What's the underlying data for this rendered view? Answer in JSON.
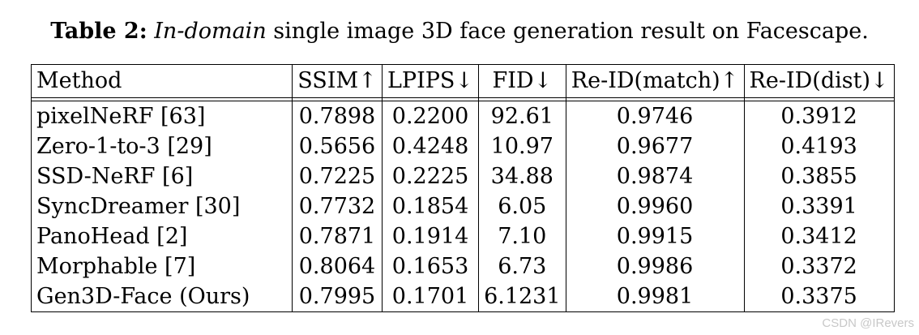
{
  "caption": {
    "label": "Table 2:",
    "italic": "In-domain",
    "rest": " single image 3D face generation result on Facescape."
  },
  "table": {
    "headers": [
      "Method",
      "SSIM↑",
      "LPIPS↓",
      "FID↓",
      "Re-ID(match)↑",
      "Re-ID(dist)↓"
    ],
    "rows": [
      {
        "method": "pixelNeRF [63]",
        "ssim": "0.7898",
        "lpips": "0.2200",
        "fid": "92.61",
        "match": "0.9746",
        "dist": "0.3912"
      },
      {
        "method": "Zero-1-to-3 [29]",
        "ssim": "0.5656",
        "lpips": "0.4248",
        "fid": "10.97",
        "match": "0.9677",
        "dist": "0.4193"
      },
      {
        "method": "SSD-NeRF [6]",
        "ssim": "0.7225",
        "lpips": "0.2225",
        "fid": "34.88",
        "match": "0.9874",
        "dist": "0.3855"
      },
      {
        "method": "SyncDreamer [30]",
        "ssim": "0.7732",
        "lpips": "0.1854",
        "fid": "6.05",
        "match": "0.9960",
        "dist": "0.3391"
      },
      {
        "method": "PanoHead [2]",
        "ssim": "0.7871",
        "lpips": "0.1914",
        "fid": "7.10",
        "match": "0.9915",
        "dist": "0.3412"
      },
      {
        "method": "Morphable [7]",
        "ssim": "0.8064",
        "lpips": "0.1653",
        "fid": "6.73",
        "match": "0.9986",
        "dist": "0.3372"
      },
      {
        "method": "Gen3D-Face (Ours)",
        "ssim": "0.7995",
        "lpips": "0.1701",
        "fid": "6.1231",
        "match": "0.9981",
        "dist": "0.3375"
      }
    ]
  },
  "watermark": "CSDN @IRevers"
}
